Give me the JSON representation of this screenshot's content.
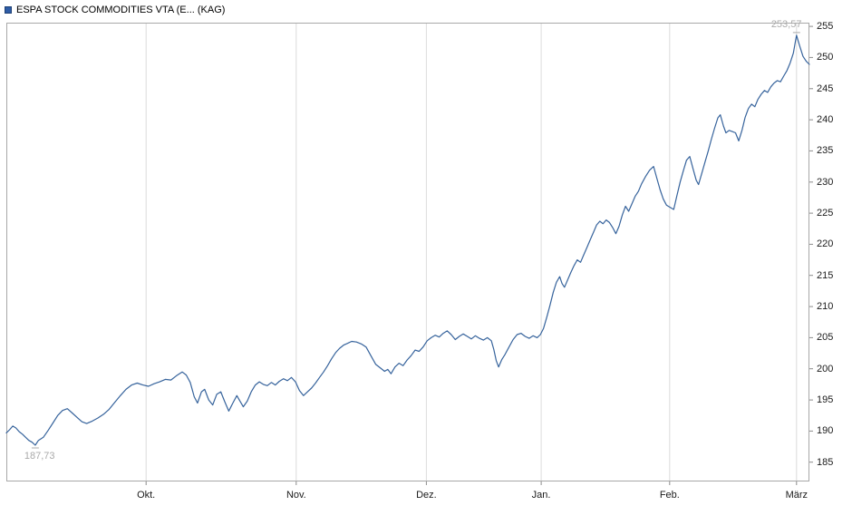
{
  "header": {
    "title": "ESPA STOCK COMMODITIES VTA (E... (KAG)",
    "legend_color": "#2E5CA6"
  },
  "chart_data": {
    "type": "line",
    "title": "ESPA STOCK COMMODITIES VTA (E... (KAG)",
    "xlabel": "",
    "ylabel": "",
    "ylim": [
      181.9,
      255.6
    ],
    "grid": "vertical-only",
    "legend_position": "top-left",
    "y_ticks": [
      185,
      190,
      195,
      200,
      205,
      210,
      215,
      220,
      225,
      230,
      235,
      240,
      245,
      250,
      255
    ],
    "x_ticks": [
      {
        "label": "Okt.",
        "f": 0.174
      },
      {
        "label": "Nov.",
        "f": 0.361
      },
      {
        "label": "Dez.",
        "f": 0.523
      },
      {
        "label": "Jan.",
        "f": 0.666
      },
      {
        "label": "Feb.",
        "f": 0.826
      },
      {
        "label": "März",
        "f": 0.984
      }
    ],
    "annotations": {
      "max": {
        "label": "253,57",
        "value": 253.57,
        "f": 0.984
      },
      "min": {
        "label": "187,73",
        "value": 187.73,
        "f": 0.036
      }
    },
    "colors": {
      "line": "#36639C",
      "grid": "#DCDCDC",
      "border": "#A8A8A8",
      "tick": "#8C8C8C",
      "axis_text": "#1A1A1A",
      "annotation_text": "#AAAAAA"
    },
    "series": [
      {
        "name": "ESPA STOCK COMMODITIES VTA",
        "color": "#36639C",
        "points": [
          [
            0.0,
            189.7
          ],
          [
            0.004,
            190.2
          ],
          [
            0.008,
            190.8
          ],
          [
            0.012,
            190.5
          ],
          [
            0.016,
            189.9
          ],
          [
            0.02,
            189.5
          ],
          [
            0.024,
            189.0
          ],
          [
            0.028,
            188.5
          ],
          [
            0.032,
            188.2
          ],
          [
            0.036,
            187.73
          ],
          [
            0.04,
            188.5
          ],
          [
            0.046,
            189.0
          ],
          [
            0.052,
            190.1
          ],
          [
            0.058,
            191.3
          ],
          [
            0.064,
            192.5
          ],
          [
            0.07,
            193.3
          ],
          [
            0.076,
            193.6
          ],
          [
            0.082,
            192.9
          ],
          [
            0.088,
            192.2
          ],
          [
            0.094,
            191.5
          ],
          [
            0.1,
            191.2
          ],
          [
            0.107,
            191.6
          ],
          [
            0.114,
            192.1
          ],
          [
            0.121,
            192.7
          ],
          [
            0.128,
            193.5
          ],
          [
            0.135,
            194.6
          ],
          [
            0.142,
            195.7
          ],
          [
            0.149,
            196.7
          ],
          [
            0.156,
            197.4
          ],
          [
            0.163,
            197.7
          ],
          [
            0.17,
            197.4
          ],
          [
            0.177,
            197.2
          ],
          [
            0.184,
            197.6
          ],
          [
            0.191,
            197.9
          ],
          [
            0.198,
            198.3
          ],
          [
            0.205,
            198.2
          ],
          [
            0.212,
            198.9
          ],
          [
            0.219,
            199.5
          ],
          [
            0.224,
            199.0
          ],
          [
            0.229,
            197.8
          ],
          [
            0.234,
            195.5
          ],
          [
            0.238,
            194.5
          ],
          [
            0.243,
            196.3
          ],
          [
            0.247,
            196.7
          ],
          [
            0.252,
            195.0
          ],
          [
            0.257,
            194.2
          ],
          [
            0.262,
            195.9
          ],
          [
            0.267,
            196.3
          ],
          [
            0.272,
            194.7
          ],
          [
            0.277,
            193.2
          ],
          [
            0.282,
            194.5
          ],
          [
            0.287,
            195.7
          ],
          [
            0.291,
            194.8
          ],
          [
            0.295,
            193.9
          ],
          [
            0.3,
            194.8
          ],
          [
            0.305,
            196.3
          ],
          [
            0.31,
            197.4
          ],
          [
            0.315,
            197.9
          ],
          [
            0.32,
            197.5
          ],
          [
            0.325,
            197.3
          ],
          [
            0.33,
            197.8
          ],
          [
            0.335,
            197.4
          ],
          [
            0.34,
            198.0
          ],
          [
            0.345,
            198.4
          ],
          [
            0.35,
            198.1
          ],
          [
            0.355,
            198.6
          ],
          [
            0.36,
            197.9
          ],
          [
            0.365,
            196.5
          ],
          [
            0.37,
            195.7
          ],
          [
            0.375,
            196.3
          ],
          [
            0.38,
            196.9
          ],
          [
            0.385,
            197.7
          ],
          [
            0.39,
            198.6
          ],
          [
            0.395,
            199.5
          ],
          [
            0.4,
            200.5
          ],
          [
            0.405,
            201.6
          ],
          [
            0.41,
            202.6
          ],
          [
            0.415,
            203.3
          ],
          [
            0.42,
            203.8
          ],
          [
            0.425,
            204.1
          ],
          [
            0.43,
            204.4
          ],
          [
            0.436,
            204.3
          ],
          [
            0.442,
            204.0
          ],
          [
            0.448,
            203.5
          ],
          [
            0.454,
            202.1
          ],
          [
            0.46,
            200.7
          ],
          [
            0.466,
            200.1
          ],
          [
            0.471,
            199.6
          ],
          [
            0.475,
            199.9
          ],
          [
            0.479,
            199.2
          ],
          [
            0.484,
            200.3
          ],
          [
            0.489,
            200.9
          ],
          [
            0.494,
            200.5
          ],
          [
            0.499,
            201.4
          ],
          [
            0.504,
            202.1
          ],
          [
            0.509,
            203.0
          ],
          [
            0.514,
            202.8
          ],
          [
            0.519,
            203.5
          ],
          [
            0.524,
            204.5
          ],
          [
            0.529,
            205.0
          ],
          [
            0.534,
            205.4
          ],
          [
            0.539,
            205.1
          ],
          [
            0.544,
            205.7
          ],
          [
            0.549,
            206.1
          ],
          [
            0.554,
            205.5
          ],
          [
            0.559,
            204.7
          ],
          [
            0.564,
            205.2
          ],
          [
            0.569,
            205.6
          ],
          [
            0.574,
            205.2
          ],
          [
            0.579,
            204.8
          ],
          [
            0.584,
            205.3
          ],
          [
            0.589,
            204.9
          ],
          [
            0.594,
            204.6
          ],
          [
            0.599,
            205.0
          ],
          [
            0.604,
            204.5
          ],
          [
            0.607,
            203.1
          ],
          [
            0.61,
            201.3
          ],
          [
            0.613,
            200.3
          ],
          [
            0.617,
            201.5
          ],
          [
            0.621,
            202.3
          ],
          [
            0.626,
            203.5
          ],
          [
            0.631,
            204.7
          ],
          [
            0.636,
            205.5
          ],
          [
            0.641,
            205.7
          ],
          [
            0.646,
            205.2
          ],
          [
            0.651,
            204.9
          ],
          [
            0.656,
            205.3
          ],
          [
            0.661,
            205.0
          ],
          [
            0.665,
            205.5
          ],
          [
            0.669,
            206.5
          ],
          [
            0.673,
            208.3
          ],
          [
            0.677,
            210.2
          ],
          [
            0.681,
            212.3
          ],
          [
            0.685,
            213.9
          ],
          [
            0.689,
            214.8
          ],
          [
            0.692,
            213.7
          ],
          [
            0.695,
            213.1
          ],
          [
            0.699,
            214.3
          ],
          [
            0.703,
            215.5
          ],
          [
            0.707,
            216.6
          ],
          [
            0.711,
            217.5
          ],
          [
            0.715,
            217.1
          ],
          [
            0.719,
            218.3
          ],
          [
            0.723,
            219.5
          ],
          [
            0.727,
            220.7
          ],
          [
            0.731,
            221.9
          ],
          [
            0.735,
            223.1
          ],
          [
            0.739,
            223.7
          ],
          [
            0.743,
            223.3
          ],
          [
            0.747,
            223.9
          ],
          [
            0.751,
            223.5
          ],
          [
            0.755,
            222.7
          ],
          [
            0.759,
            221.7
          ],
          [
            0.763,
            222.9
          ],
          [
            0.767,
            224.7
          ],
          [
            0.771,
            226.1
          ],
          [
            0.775,
            225.3
          ],
          [
            0.779,
            226.5
          ],
          [
            0.783,
            227.7
          ],
          [
            0.787,
            228.5
          ],
          [
            0.791,
            229.7
          ],
          [
            0.796,
            230.9
          ],
          [
            0.801,
            231.9
          ],
          [
            0.806,
            232.5
          ],
          [
            0.81,
            230.6
          ],
          [
            0.814,
            228.8
          ],
          [
            0.818,
            227.3
          ],
          [
            0.822,
            226.3
          ],
          [
            0.827,
            225.9
          ],
          [
            0.831,
            225.6
          ],
          [
            0.835,
            227.8
          ],
          [
            0.839,
            230.0
          ],
          [
            0.843,
            231.8
          ],
          [
            0.847,
            233.5
          ],
          [
            0.851,
            234.1
          ],
          [
            0.855,
            232.2
          ],
          [
            0.859,
            230.3
          ],
          [
            0.862,
            229.6
          ],
          [
            0.866,
            231.4
          ],
          [
            0.87,
            233.2
          ],
          [
            0.874,
            235.0
          ],
          [
            0.878,
            236.9
          ],
          [
            0.882,
            238.7
          ],
          [
            0.886,
            240.3
          ],
          [
            0.889,
            240.8
          ],
          [
            0.893,
            239.0
          ],
          [
            0.896,
            237.9
          ],
          [
            0.9,
            238.3
          ],
          [
            0.904,
            238.1
          ],
          [
            0.908,
            237.9
          ],
          [
            0.912,
            236.6
          ],
          [
            0.916,
            238.3
          ],
          [
            0.92,
            240.4
          ],
          [
            0.924,
            241.8
          ],
          [
            0.928,
            242.5
          ],
          [
            0.932,
            242.1
          ],
          [
            0.936,
            243.3
          ],
          [
            0.94,
            244.1
          ],
          [
            0.944,
            244.7
          ],
          [
            0.948,
            244.4
          ],
          [
            0.952,
            245.3
          ],
          [
            0.956,
            245.9
          ],
          [
            0.96,
            246.3
          ],
          [
            0.964,
            246.1
          ],
          [
            0.968,
            247.0
          ],
          [
            0.972,
            247.9
          ],
          [
            0.976,
            249.1
          ],
          [
            0.98,
            250.7
          ],
          [
            0.982,
            252.2
          ],
          [
            0.984,
            253.57
          ],
          [
            0.988,
            251.8
          ],
          [
            0.992,
            250.2
          ],
          [
            0.996,
            249.4
          ],
          [
            1.0,
            248.9
          ]
        ]
      }
    ]
  }
}
